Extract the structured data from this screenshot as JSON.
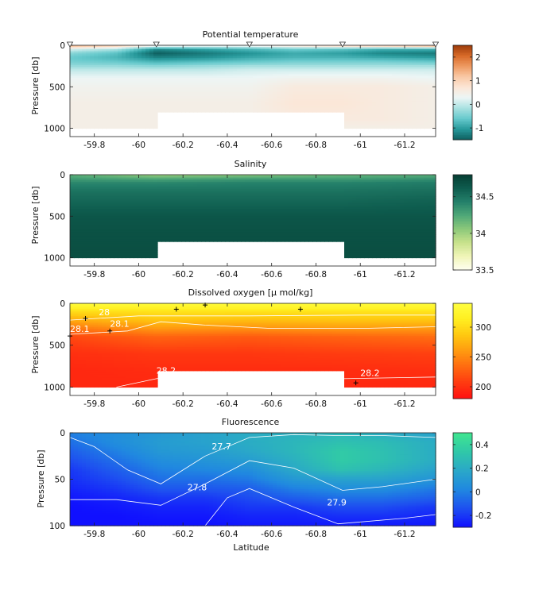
{
  "colors": {
    "theta": [
      "#0e5f5f",
      "#27999b",
      "#66c9cc",
      "#a9e1e1",
      "#ecf6f6",
      "#fce6d6",
      "#f9c8a5",
      "#ee9a62",
      "#d86a28",
      "#9a3a0a"
    ],
    "salinity": [
      "#fffff0",
      "#f0f5b8",
      "#c8e28c",
      "#8cc87a",
      "#4fa878",
      "#24806a",
      "#0e5c4e",
      "#063e33"
    ],
    "oxygen": [
      "#ff1010",
      "#ff3a10",
      "#ff6a10",
      "#ff9a10",
      "#ffc810",
      "#ffee20",
      "#ffff40"
    ],
    "fluor": [
      "#1010ff",
      "#1e50f0",
      "#2088e0",
      "#2aa8c8",
      "#30c8a8",
      "#40e690"
    ]
  },
  "chart_data": [
    {
      "type": "heatmap",
      "title": "Potential temperature",
      "ylabel": "Pressure [db]",
      "xlabel": "",
      "x_ticks": [
        -59.8,
        -60,
        -60.2,
        -60.4,
        -60.6,
        -60.8,
        -61,
        -61.2
      ],
      "x_tick_labels": [
        "-59.8",
        "-60",
        "-60.2",
        "-60.4",
        "-60.6",
        "-60.8",
        "-61",
        "-61.2"
      ],
      "xlim": [
        -59.69,
        -61.34
      ],
      "y_ticks": [
        0,
        500,
        1000
      ],
      "y_tick_labels": [
        "0",
        "500",
        "1000"
      ],
      "ylim": [
        0,
        1100
      ],
      "colorbar": {
        "range": [
          -1.5,
          2.5
        ],
        "ticks": [
          2,
          1,
          0,
          -1
        ],
        "tick_labels": [
          "2",
          "1",
          "0",
          "-1"
        ]
      },
      "station_markers_x": [
        -59.69,
        -60.08,
        -60.5,
        -60.92,
        -61.34
      ],
      "masked_region": {
        "x": [
          -60.08,
          -60.92
        ],
        "p": [
          800,
          1100
        ]
      },
      "depth_levels": [
        0,
        50,
        100,
        150,
        200,
        250,
        300,
        400,
        500,
        700,
        900,
        1000
      ],
      "stations": [
        {
          "lat": -59.69,
          "values": [
            1.5,
            0.1,
            -0.4,
            -0.6,
            -0.5,
            -0.3,
            0.0,
            0.3,
            0.4,
            0.5,
            0.5,
            0.5
          ]
        },
        {
          "lat": -59.9,
          "values": [
            1.2,
            -0.2,
            -0.7,
            -0.8,
            -0.6,
            -0.3,
            0.0,
            0.3,
            0.4,
            0.5,
            0.5,
            0.5
          ]
        },
        {
          "lat": -60.08,
          "values": [
            0.6,
            -1.2,
            -1.5,
            -1.2,
            -0.8,
            -0.4,
            0.0,
            0.3,
            0.4,
            0.5,
            0.5,
            0.5
          ]
        },
        {
          "lat": -60.3,
          "values": [
            0.5,
            -1.0,
            -1.3,
            -1.1,
            -0.7,
            -0.3,
            0.0,
            0.3,
            0.4,
            0.5,
            0.5,
            0.5
          ]
        },
        {
          "lat": -60.5,
          "values": [
            0.5,
            -0.8,
            -1.1,
            -0.9,
            -0.6,
            -0.2,
            0.1,
            0.3,
            0.4,
            0.5,
            0.5,
            0.5
          ]
        },
        {
          "lat": -60.7,
          "values": [
            0.8,
            -0.6,
            -0.9,
            -0.8,
            -0.5,
            -0.2,
            0.1,
            0.4,
            0.6,
            0.7,
            0.6,
            0.5
          ]
        },
        {
          "lat": -60.92,
          "values": [
            1.1,
            -0.7,
            -1.0,
            -0.8,
            -0.5,
            -0.2,
            0.1,
            0.4,
            0.6,
            0.7,
            0.6,
            0.5
          ]
        },
        {
          "lat": -61.1,
          "values": [
            1.3,
            -0.9,
            -1.2,
            -0.9,
            -0.5,
            -0.2,
            0.1,
            0.4,
            0.6,
            0.6,
            0.6,
            0.5
          ]
        },
        {
          "lat": -61.34,
          "values": [
            1.6,
            -0.9,
            -1.3,
            -1.0,
            -0.6,
            -0.2,
            0.1,
            0.3,
            0.5,
            0.5,
            0.5,
            0.5
          ]
        }
      ]
    },
    {
      "type": "heatmap",
      "title": "Salinity",
      "ylabel": "Pressure [db]",
      "xlabel": "",
      "x_ticks": [
        -59.8,
        -60,
        -60.2,
        -60.4,
        -60.6,
        -60.8,
        -61,
        -61.2
      ],
      "x_tick_labels": [
        "-59.8",
        "-60",
        "-60.2",
        "-60.4",
        "-60.6",
        "-60.8",
        "-61",
        "-61.2"
      ],
      "xlim": [
        -59.69,
        -61.34
      ],
      "y_ticks": [
        0,
        500,
        1000
      ],
      "y_tick_labels": [
        "0",
        "500",
        "1000"
      ],
      "ylim": [
        0,
        1100
      ],
      "colorbar": {
        "range": [
          33.5,
          34.8
        ],
        "ticks": [
          34.5,
          34,
          33.5
        ],
        "tick_labels": [
          "34.5",
          "34",
          "33.5"
        ]
      },
      "masked_region": {
        "x": [
          -60.08,
          -60.92
        ],
        "p": [
          800,
          1100
        ]
      },
      "depth_levels": [
        0,
        50,
        100,
        200,
        300,
        500,
        700,
        1000
      ],
      "stations": [
        {
          "lat": -59.69,
          "values": [
            34.2,
            34.3,
            34.4,
            34.5,
            34.55,
            34.65,
            34.68,
            34.7
          ]
        },
        {
          "lat": -60.08,
          "values": [
            34.0,
            34.25,
            34.4,
            34.5,
            34.55,
            34.65,
            34.68,
            34.7
          ]
        },
        {
          "lat": -60.5,
          "values": [
            34.05,
            34.3,
            34.42,
            34.5,
            34.55,
            34.65,
            34.68,
            34.7
          ]
        },
        {
          "lat": -60.92,
          "values": [
            34.15,
            34.3,
            34.42,
            34.5,
            34.55,
            34.65,
            34.68,
            34.7
          ]
        },
        {
          "lat": -61.34,
          "values": [
            34.2,
            34.35,
            34.45,
            34.52,
            34.58,
            34.65,
            34.68,
            34.7
          ]
        }
      ]
    },
    {
      "type": "heatmap",
      "title": "Dissolved oxygen [μ mol/kg]",
      "ylabel": "Pressure [db]",
      "xlabel": "",
      "x_ticks": [
        -59.8,
        -60,
        -60.2,
        -60.4,
        -60.6,
        -60.8,
        -61,
        -61.2
      ],
      "x_tick_labels": [
        "-59.8",
        "-60",
        "-60.2",
        "-60.4",
        "-60.6",
        "-60.8",
        "-61",
        "-61.2"
      ],
      "xlim": [
        -59.69,
        -61.34
      ],
      "y_ticks": [
        0,
        500,
        1000
      ],
      "y_tick_labels": [
        "0",
        "500",
        "1000"
      ],
      "ylim": [
        0,
        1100
      ],
      "colorbar": {
        "range": [
          180,
          340
        ],
        "ticks": [
          300,
          250,
          200
        ],
        "tick_labels": [
          "300",
          "250",
          "200"
        ]
      },
      "masked_region": {
        "x": [
          -60.08,
          -60.92
        ],
        "p": [
          800,
          1100
        ]
      },
      "depth_levels": [
        0,
        50,
        100,
        200,
        300,
        400,
        600,
        800,
        1000
      ],
      "stations": [
        {
          "lat": -59.69,
          "values": [
            335,
            320,
            300,
            270,
            240,
            215,
            200,
            195,
            195
          ]
        },
        {
          "lat": -60.08,
          "values": [
            335,
            320,
            305,
            285,
            260,
            230,
            205,
            198,
            195
          ]
        },
        {
          "lat": -60.5,
          "values": [
            335,
            322,
            305,
            280,
            255,
            225,
            205,
            198,
            195
          ]
        },
        {
          "lat": -60.92,
          "values": [
            335,
            322,
            305,
            285,
            260,
            230,
            208,
            198,
            195
          ]
        },
        {
          "lat": -61.34,
          "values": [
            335,
            322,
            305,
            285,
            260,
            235,
            210,
            200,
            195
          ]
        }
      ],
      "contours": [
        {
          "label": "28",
          "points": [
            [
              -59.69,
              200
            ],
            [
              -60.0,
              150
            ],
            [
              -60.5,
              150
            ],
            [
              -61.0,
              140
            ],
            [
              -61.34,
              140
            ]
          ]
        },
        {
          "label": "28.1",
          "points": [
            [
              -59.69,
              370
            ],
            [
              -59.95,
              330
            ],
            [
              -60.1,
              220
            ],
            [
              -60.3,
              260
            ],
            [
              -60.6,
              300
            ],
            [
              -61.0,
              300
            ],
            [
              -61.34,
              280
            ]
          ]
        },
        {
          "label": "28.2",
          "points": [
            [
              -59.9,
              1000
            ],
            [
              -60.08,
              900
            ],
            [
              -60.2,
              860
            ],
            [
              -60.92,
              900
            ],
            [
              -61.34,
              880
            ]
          ]
        }
      ],
      "contour_labels": [
        {
          "text": "28",
          "x": -59.82,
          "p": 140
        },
        {
          "text": "28.1",
          "x": -59.69,
          "p": 340
        },
        {
          "text": "28.1",
          "x": -59.87,
          "p": 280
        },
        {
          "text": "28.2",
          "x": -60.08,
          "p": 840
        },
        {
          "text": "28.2",
          "x": -61.0,
          "p": 870
        }
      ],
      "cross_markers": [
        {
          "x": -59.69,
          "p": 390
        },
        {
          "x": -59.76,
          "p": 180
        },
        {
          "x": -59.87,
          "p": 330
        },
        {
          "x": -60.17,
          "p": 70
        },
        {
          "x": -60.3,
          "p": 20
        },
        {
          "x": -60.73,
          "p": 70
        },
        {
          "x": -60.98,
          "p": 950
        }
      ]
    },
    {
      "type": "heatmap",
      "title": "Fluorescence",
      "ylabel": "Pressure [db]",
      "xlabel": "Latitude",
      "x_ticks": [
        -59.8,
        -60,
        -60.2,
        -60.4,
        -60.6,
        -60.8,
        -61,
        -61.2
      ],
      "x_tick_labels": [
        "-59.8",
        "-60",
        "-60.2",
        "-60.4",
        "-60.6",
        "-60.8",
        "-61",
        "-61.2"
      ],
      "xlim": [
        -59.69,
        -61.34
      ],
      "y_ticks": [
        0,
        50,
        100
      ],
      "y_tick_labels": [
        "0",
        "50",
        "100"
      ],
      "ylim": [
        0,
        100
      ],
      "colorbar": {
        "range": [
          -0.3,
          0.5
        ],
        "ticks": [
          0.4,
          0.2,
          0,
          -0.2
        ],
        "tick_labels": [
          "0.4",
          "0.2",
          "0",
          "-0.2"
        ]
      },
      "depth_levels": [
        0,
        10,
        20,
        30,
        40,
        50,
        60,
        70,
        80,
        90,
        100
      ],
      "stations": [
        {
          "lat": -59.69,
          "values": [
            0.0,
            -0.05,
            -0.1,
            -0.15,
            -0.2,
            -0.22,
            -0.25,
            -0.28,
            -0.3,
            -0.3,
            -0.3
          ]
        },
        {
          "lat": -59.9,
          "values": [
            0.05,
            0.05,
            0.0,
            -0.05,
            -0.1,
            -0.15,
            -0.2,
            -0.25,
            -0.28,
            -0.3,
            -0.3
          ]
        },
        {
          "lat": -60.1,
          "values": [
            0.1,
            0.12,
            0.1,
            0.05,
            0.0,
            -0.05,
            -0.12,
            -0.2,
            -0.25,
            -0.28,
            -0.3
          ]
        },
        {
          "lat": -60.3,
          "values": [
            0.15,
            0.15,
            0.12,
            0.08,
            0.02,
            -0.05,
            -0.12,
            -0.2,
            -0.25,
            -0.28,
            -0.3
          ]
        },
        {
          "lat": -60.5,
          "values": [
            0.2,
            0.2,
            0.18,
            0.12,
            0.05,
            -0.02,
            -0.1,
            -0.15,
            -0.2,
            -0.25,
            -0.28
          ]
        },
        {
          "lat": -60.7,
          "values": [
            0.22,
            0.25,
            0.25,
            0.22,
            0.18,
            0.1,
            0.0,
            -0.1,
            -0.2,
            -0.25,
            -0.28
          ]
        },
        {
          "lat": -60.92,
          "values": [
            0.25,
            0.3,
            0.35,
            0.35,
            0.3,
            0.15,
            0.05,
            -0.05,
            -0.15,
            -0.22,
            -0.28
          ]
        },
        {
          "lat": -61.1,
          "values": [
            0.2,
            0.28,
            0.3,
            0.3,
            0.25,
            0.15,
            0.05,
            -0.05,
            -0.15,
            -0.22,
            -0.28
          ]
        },
        {
          "lat": -61.34,
          "values": [
            0.15,
            0.2,
            0.2,
            0.2,
            0.15,
            0.08,
            -0.02,
            -0.1,
            -0.2,
            -0.25,
            -0.28
          ]
        }
      ],
      "contours": [
        {
          "label": "27.7",
          "points": [
            [
              -59.69,
              5
            ],
            [
              -59.8,
              15
            ],
            [
              -59.95,
              40
            ],
            [
              -60.1,
              55
            ],
            [
              -60.3,
              25
            ],
            [
              -60.5,
              5
            ],
            [
              -60.7,
              2
            ],
            [
              -60.9,
              3
            ],
            [
              -61.1,
              3
            ],
            [
              -61.34,
              5
            ]
          ]
        },
        {
          "label": "27.8",
          "points": [
            [
              -59.69,
              72
            ],
            [
              -59.9,
              72
            ],
            [
              -60.1,
              78
            ],
            [
              -60.3,
              55
            ],
            [
              -60.5,
              30
            ],
            [
              -60.7,
              38
            ],
            [
              -60.92,
              62
            ],
            [
              -61.1,
              58
            ],
            [
              -61.34,
              50
            ]
          ]
        },
        {
          "label": "27.9",
          "points": [
            [
              -60.3,
              100
            ],
            [
              -60.4,
              70
            ],
            [
              -60.5,
              60
            ],
            [
              -60.7,
              80
            ],
            [
              -60.9,
              98
            ],
            [
              -61.2,
              92
            ],
            [
              -61.34,
              88
            ]
          ]
        }
      ],
      "contour_labels": [
        {
          "text": "27.7",
          "x": -60.33,
          "p": 18
        },
        {
          "text": "27.8",
          "x": -60.22,
          "p": 62
        },
        {
          "text": "27.9",
          "x": -60.85,
          "p": 78
        }
      ]
    }
  ]
}
